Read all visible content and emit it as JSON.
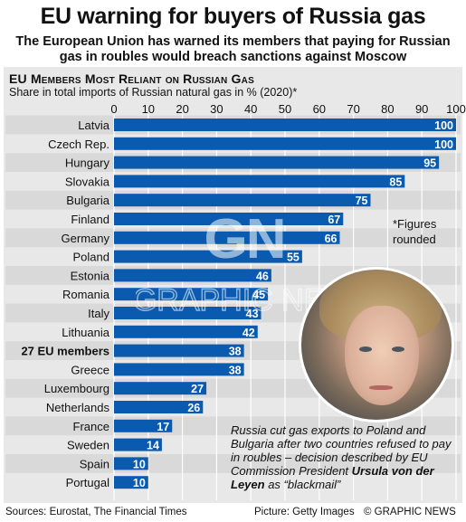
{
  "headline": "EU warning for buyers of Russia gas",
  "subtitle": "The European Union has warned its members that paying for Russian gas in roubles would breach sanctions against Moscow",
  "section_title": "EU Members Most Reliant on Russian Gas",
  "note": "*Figures\nrounded",
  "caption": {
    "pre": "Russia cut gas exports to Poland and Bulgaria after two countries refused to pay in roubles – decision described by EU Commission President ",
    "name": "Ursula von der Leyen",
    "post": " as “blackmail”"
  },
  "watermark": "GRAPHIC NEWS",
  "footer": {
    "sources": "Sources: Eurostat, The Financial Times",
    "picture": "Picture: Getty Images",
    "copyright": "© GRAPHIC NEWS"
  },
  "colors": {
    "bar": "#0a5bb0",
    "bar_label_bg": "#0a5bb0",
    "label_text": "#ffffff",
    "stripe": "#d9d9d9",
    "panel": "#e8e8e8"
  },
  "chart_data": {
    "type": "bar",
    "orientation": "horizontal",
    "ylabel": "Share in total imports of Russian natural gas in % (2020)*",
    "xlim": [
      0,
      100
    ],
    "xticks": [
      0,
      10,
      20,
      30,
      40,
      50,
      60,
      70,
      80,
      90,
      100
    ],
    "grid": true,
    "categories": [
      "Latvia",
      "Czech Rep.",
      "Hungary",
      "Slovakia",
      "Bulgaria",
      "Finland",
      "Germany",
      "Poland",
      "Estonia",
      "Romania",
      "Italy",
      "Lithuania",
      "27 EU members",
      "Greece",
      "Luxembourg",
      "Netherlands",
      "France",
      "Sweden",
      "Spain",
      "Portugal"
    ],
    "values": [
      100,
      100,
      95,
      85,
      75,
      67,
      66,
      55,
      46,
      45,
      43,
      42,
      38,
      38,
      27,
      26,
      17,
      14,
      10,
      10
    ],
    "highlight": "27 EU members"
  }
}
